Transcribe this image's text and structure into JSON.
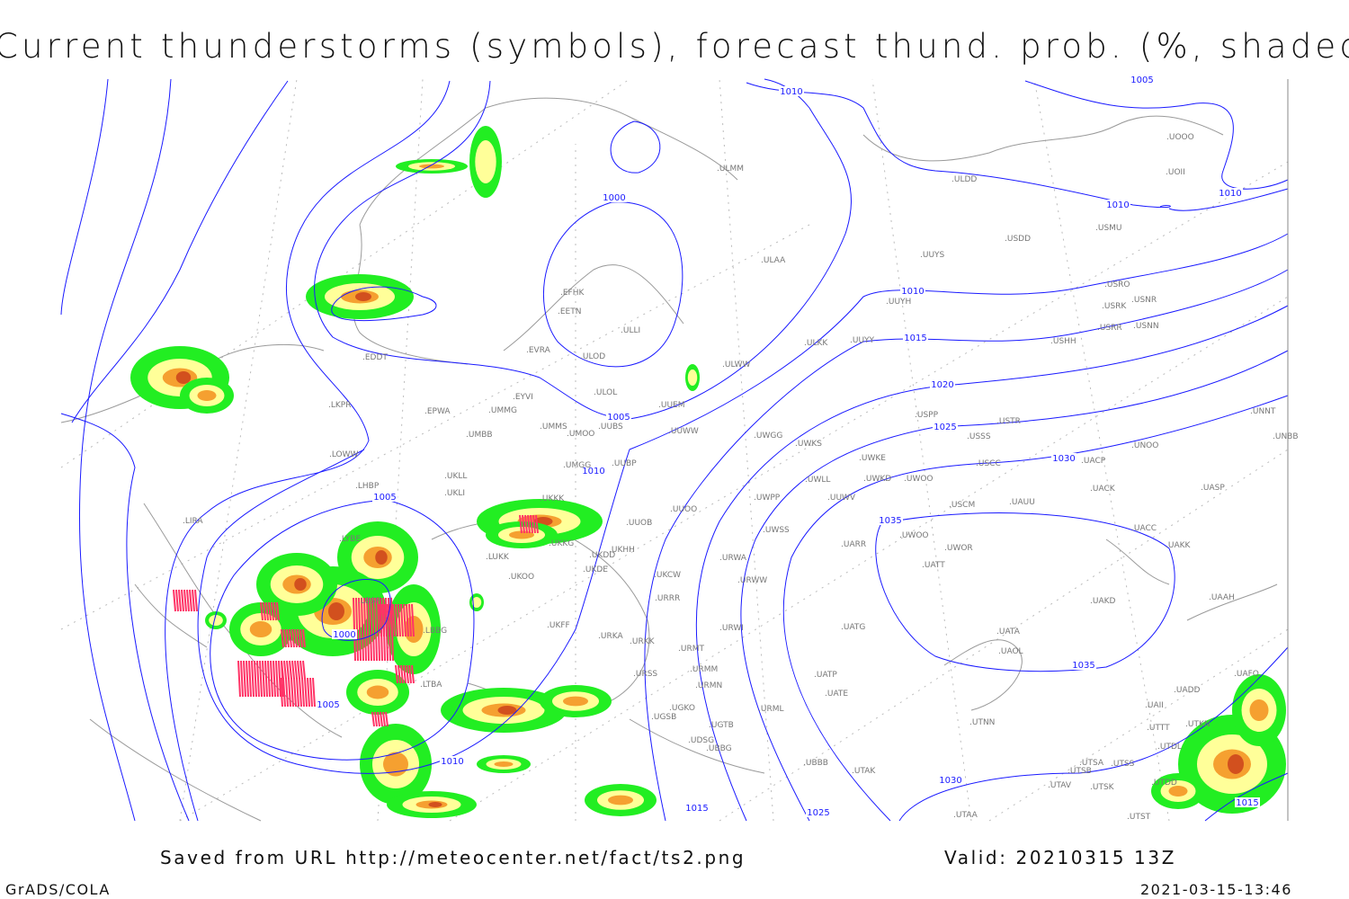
{
  "title": "Current thunderstorms (symbols), forecast thund. prob. (%, shaded)",
  "footer": {
    "source": "Saved from URL http://meteocenter.net/fact/ts2.png",
    "valid": "Valid: 20210315 13Z",
    "software": "GrADS/COLA",
    "timestamp": "2021-03-15-13:46"
  },
  "colors": {
    "isobar": "#1a1aff",
    "coast": "#9a9a9a",
    "prob_low": "#22ee22",
    "prob_mid": "#ffff99",
    "prob_high": "#f5a030",
    "prob_max": "#d2501e",
    "thunderstorm_symbol": "#ff3366"
  },
  "isobar_labels": [
    "1010",
    "1005",
    "1010",
    "1010",
    "1000",
    "1010",
    "1015",
    "1020",
    "1025",
    "1030",
    "1035",
    "1035",
    "1005",
    "1010",
    "1005",
    "1000",
    "1005",
    "1010",
    "1015",
    "1025",
    "1030",
    "1015"
  ],
  "stations": [
    "EDDT",
    "LKPR",
    "EPWA",
    "UMMG",
    "EYVI",
    "ULOL",
    "ULOD",
    "EVRA",
    "EETN",
    "EFHK",
    "ULLI",
    "UMMS",
    "UMOO",
    "UUBS",
    "UUEM",
    "ULWW",
    "ULAA",
    "ULMM",
    "ULDD",
    "USDD",
    "USMU",
    "UUYS",
    "UUYH",
    "USRO",
    "USRK",
    "USNR",
    "USRR",
    "USNN",
    "UUYY",
    "ULKK",
    "USHH",
    "UMBB",
    "LOWW",
    "UKLL",
    "UKLI",
    "LHBP",
    "UUWW",
    "UWGG",
    "UWKS",
    "UWKE",
    "USPP",
    "USTR",
    "USSS",
    "UNOO",
    "UNNT",
    "UNBB",
    "USCC",
    "UACP",
    "UWKD",
    "UWOO",
    "UWLL",
    "UUWV",
    "UWPP",
    "UUBP",
    "UMGG",
    "UUOO",
    "UUOB",
    "UKHH",
    "UKDD",
    "UKDE",
    "UKKK",
    "UKKG",
    "LUKK",
    "UKOO",
    "LIRA",
    "LYBE",
    "LBSF",
    "LBBG",
    "LTBA",
    "UKCW",
    "URRR",
    "UWSS",
    "URWW",
    "URWA",
    "UKFF",
    "URKA",
    "URKK",
    "URMT",
    "URMM",
    "URMN",
    "URSS",
    "UGSB",
    "UGKO",
    "UGTB",
    "UDSG",
    "UBBG",
    "UBBB",
    "URML",
    "URWI",
    "UATG",
    "UATP",
    "UATE",
    "UTAK",
    "UACK",
    "UASP",
    "USCM",
    "UAUU",
    "UACC",
    "UAKK",
    "UWOO",
    "UWOR",
    "UATT",
    "UARR",
    "UAKD",
    "UAAH",
    "UATA",
    "UAOL",
    "UTNN",
    "UTSA",
    "UTSB",
    "UTAV",
    "UTSK",
    "UTSS",
    "UTDD",
    "UTAA",
    "UTST",
    "UAII",
    "UTTT",
    "UTKN",
    "UTDL",
    "UADD",
    "UAFO",
    "UOOO",
    "UOII"
  ]
}
